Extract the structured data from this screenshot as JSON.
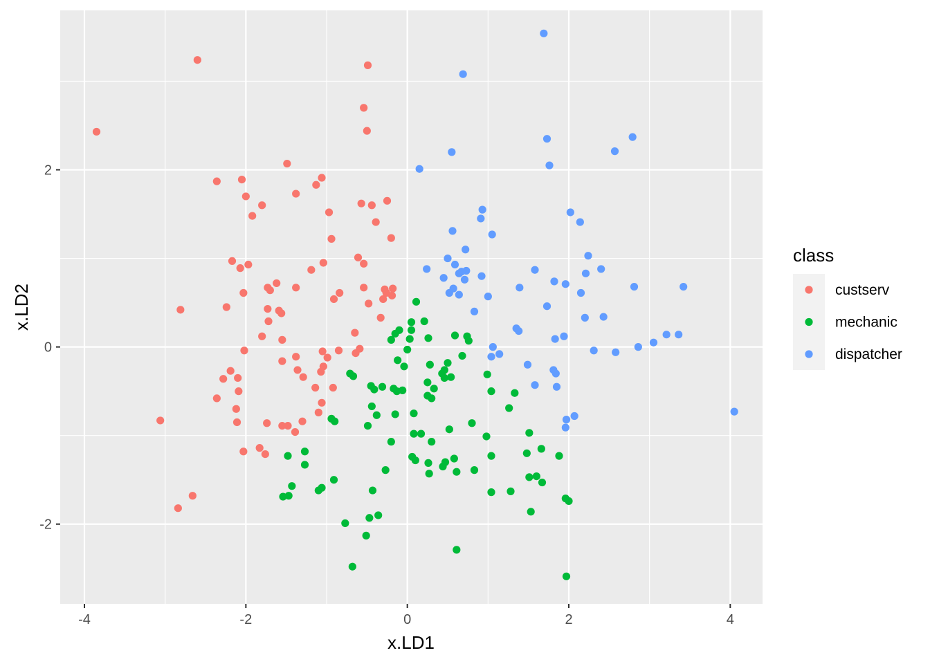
{
  "chart_data": {
    "type": "scatter",
    "title": "",
    "xlabel": "x.LD1",
    "ylabel": "x.LD2",
    "xlim": [
      -4.3,
      4.4
    ],
    "ylim": [
      -2.9,
      3.8
    ],
    "x_ticks": [
      -4,
      -2,
      0,
      2,
      4
    ],
    "y_ticks": [
      -2,
      0,
      2
    ],
    "x_tick_labels": [
      "-4",
      "-2",
      "0",
      "2",
      "4"
    ],
    "y_tick_labels": [
      "-2",
      "0",
      "2"
    ],
    "grid": true,
    "legend": {
      "title": "class",
      "position": "right"
    },
    "series": [
      {
        "name": "custserv",
        "color": "#F8766D",
        "points": [
          [
            -3.85,
            2.43
          ],
          [
            -2.6,
            3.24
          ],
          [
            -0.49,
            3.18
          ],
          [
            -0.54,
            2.7
          ],
          [
            -0.5,
            2.44
          ],
          [
            -1.49,
            2.07
          ],
          [
            -2.36,
            1.87
          ],
          [
            -2.05,
            1.89
          ],
          [
            -1.06,
            1.91
          ],
          [
            -1.13,
            1.83
          ],
          [
            -1.38,
            1.73
          ],
          [
            -2.0,
            1.7
          ],
          [
            -1.8,
            1.6
          ],
          [
            -0.57,
            1.62
          ],
          [
            -0.44,
            1.6
          ],
          [
            -0.25,
            1.65
          ],
          [
            -1.92,
            1.48
          ],
          [
            -0.97,
            1.52
          ],
          [
            -0.39,
            1.41
          ],
          [
            -0.2,
            1.23
          ],
          [
            -0.94,
            1.22
          ],
          [
            -2.17,
            0.97
          ],
          [
            -1.97,
            0.93
          ],
          [
            -2.07,
            0.89
          ],
          [
            -1.04,
            0.95
          ],
          [
            -1.19,
            0.87
          ],
          [
            -0.61,
            1.01
          ],
          [
            -0.54,
            0.94
          ],
          [
            -1.62,
            0.72
          ],
          [
            -1.73,
            0.67
          ],
          [
            -1.7,
            0.64
          ],
          [
            -1.38,
            0.67
          ],
          [
            -0.54,
            0.67
          ],
          [
            -0.28,
            0.65
          ],
          [
            -0.18,
            0.66
          ],
          [
            -0.26,
            0.61
          ],
          [
            -2.03,
            0.61
          ],
          [
            -0.84,
            0.61
          ],
          [
            -0.91,
            0.54
          ],
          [
            -0.3,
            0.54
          ],
          [
            -0.19,
            0.58
          ],
          [
            -2.81,
            0.42
          ],
          [
            -2.24,
            0.45
          ],
          [
            -1.73,
            0.43
          ],
          [
            -1.59,
            0.41
          ],
          [
            -1.56,
            0.38
          ],
          [
            -0.48,
            0.49
          ],
          [
            -0.33,
            0.33
          ],
          [
            -1.72,
            0.29
          ],
          [
            -1.8,
            0.12
          ],
          [
            -1.55,
            0.08
          ],
          [
            -0.65,
            0.16
          ],
          [
            -2.02,
            -0.04
          ],
          [
            -1.05,
            -0.05
          ],
          [
            -0.85,
            -0.04
          ],
          [
            -0.59,
            -0.02
          ],
          [
            -0.64,
            -0.07
          ],
          [
            -1.38,
            -0.11
          ],
          [
            -0.99,
            -0.12
          ],
          [
            -1.55,
            -0.16
          ],
          [
            -1.04,
            -0.22
          ],
          [
            -2.19,
            -0.27
          ],
          [
            -1.36,
            -0.26
          ],
          [
            -1.07,
            -0.28
          ],
          [
            -2.28,
            -0.36
          ],
          [
            -2.1,
            -0.35
          ],
          [
            -1.29,
            -0.34
          ],
          [
            -1.14,
            -0.46
          ],
          [
            -0.92,
            -0.46
          ],
          [
            -2.09,
            -0.5
          ],
          [
            -2.36,
            -0.58
          ],
          [
            -1.06,
            -0.63
          ],
          [
            -2.12,
            -0.7
          ],
          [
            -1.1,
            -0.74
          ],
          [
            -3.06,
            -0.83
          ],
          [
            -2.11,
            -0.85
          ],
          [
            -1.74,
            -0.86
          ],
          [
            -1.3,
            -0.84
          ],
          [
            -1.55,
            -0.89
          ],
          [
            -1.48,
            -0.89
          ],
          [
            -1.39,
            -0.96
          ],
          [
            -1.83,
            -1.14
          ],
          [
            -2.03,
            -1.18
          ],
          [
            -1.76,
            -1.21
          ],
          [
            -2.66,
            -1.68
          ],
          [
            -2.84,
            -1.82
          ]
        ]
      },
      {
        "name": "mechanic",
        "color": "#00BA38",
        "points": [
          [
            0.11,
            0.51
          ],
          [
            0.05,
            0.28
          ],
          [
            0.21,
            0.29
          ],
          [
            -0.1,
            0.19
          ],
          [
            0.05,
            0.19
          ],
          [
            -0.15,
            0.15
          ],
          [
            -0.2,
            0.08
          ],
          [
            0.03,
            0.09
          ],
          [
            0.26,
            0.1
          ],
          [
            0.59,
            0.13
          ],
          [
            0.74,
            0.12
          ],
          [
            0.76,
            0.07
          ],
          [
            0.0,
            -0.03
          ],
          [
            0.68,
            -0.1
          ],
          [
            -0.12,
            -0.15
          ],
          [
            0.28,
            -0.2
          ],
          [
            0.5,
            -0.18
          ],
          [
            -0.04,
            -0.22
          ],
          [
            -0.71,
            -0.3
          ],
          [
            -0.67,
            -0.33
          ],
          [
            0.43,
            -0.3
          ],
          [
            0.46,
            -0.26
          ],
          [
            0.46,
            -0.35
          ],
          [
            0.54,
            -0.34
          ],
          [
            0.99,
            -0.31
          ],
          [
            0.25,
            -0.4
          ],
          [
            -0.45,
            -0.44
          ],
          [
            -0.31,
            -0.45
          ],
          [
            -0.41,
            -0.48
          ],
          [
            -0.17,
            -0.47
          ],
          [
            -0.13,
            -0.5
          ],
          [
            -0.06,
            -0.49
          ],
          [
            0.33,
            -0.47
          ],
          [
            1.04,
            -0.5
          ],
          [
            1.33,
            -0.52
          ],
          [
            0.25,
            -0.55
          ],
          [
            0.3,
            -0.58
          ],
          [
            -0.44,
            -0.67
          ],
          [
            1.26,
            -0.69
          ],
          [
            -0.38,
            -0.77
          ],
          [
            -0.15,
            -0.76
          ],
          [
            0.08,
            -0.75
          ],
          [
            -0.94,
            -0.81
          ],
          [
            -0.9,
            -0.84
          ],
          [
            0.8,
            -0.86
          ],
          [
            -0.49,
            -0.89
          ],
          [
            0.52,
            -0.93
          ],
          [
            0.08,
            -0.98
          ],
          [
            0.17,
            -0.98
          ],
          [
            1.51,
            -0.97
          ],
          [
            0.98,
            -1.01
          ],
          [
            -0.2,
            -1.07
          ],
          [
            0.3,
            -1.07
          ],
          [
            1.66,
            -1.15
          ],
          [
            -1.27,
            -1.18
          ],
          [
            1.48,
            -1.2
          ],
          [
            -1.48,
            -1.23
          ],
          [
            0.06,
            -1.24
          ],
          [
            0.1,
            -1.28
          ],
          [
            0.58,
            -1.26
          ],
          [
            1.04,
            -1.23
          ],
          [
            1.88,
            -1.23
          ],
          [
            0.47,
            -1.3
          ],
          [
            0.26,
            -1.31
          ],
          [
            -1.27,
            -1.33
          ],
          [
            0.44,
            -1.35
          ],
          [
            -0.27,
            -1.39
          ],
          [
            0.61,
            -1.41
          ],
          [
            0.83,
            -1.39
          ],
          [
            0.27,
            -1.43
          ],
          [
            1.51,
            -1.47
          ],
          [
            1.6,
            -1.46
          ],
          [
            -0.91,
            -1.5
          ],
          [
            1.67,
            -1.53
          ],
          [
            -1.43,
            -1.57
          ],
          [
            -1.06,
            -1.59
          ],
          [
            -1.1,
            -1.62
          ],
          [
            -0.43,
            -1.62
          ],
          [
            1.04,
            -1.64
          ],
          [
            1.28,
            -1.63
          ],
          [
            -1.54,
            -1.69
          ],
          [
            -1.47,
            -1.68
          ],
          [
            1.96,
            -1.71
          ],
          [
            2.0,
            -1.74
          ],
          [
            1.53,
            -1.86
          ],
          [
            -0.36,
            -1.9
          ],
          [
            -0.47,
            -1.93
          ],
          [
            -0.77,
            -1.99
          ],
          [
            -0.51,
            -2.13
          ],
          [
            0.61,
            -2.29
          ],
          [
            -0.68,
            -2.48
          ],
          [
            1.97,
            -2.59
          ]
        ]
      },
      {
        "name": "dispatcher",
        "color": "#619CFF",
        "points": [
          [
            1.69,
            3.54
          ],
          [
            0.69,
            3.08
          ],
          [
            2.79,
            2.37
          ],
          [
            1.73,
            2.35
          ],
          [
            0.55,
            2.2
          ],
          [
            2.57,
            2.21
          ],
          [
            0.15,
            2.01
          ],
          [
            1.76,
            2.05
          ],
          [
            0.93,
            1.55
          ],
          [
            2.02,
            1.52
          ],
          [
            0.91,
            1.45
          ],
          [
            2.14,
            1.41
          ],
          [
            0.56,
            1.31
          ],
          [
            1.05,
            1.27
          ],
          [
            0.72,
            1.1
          ],
          [
            2.24,
            1.03
          ],
          [
            0.5,
            1.0
          ],
          [
            0.59,
            0.93
          ],
          [
            0.24,
            0.88
          ],
          [
            0.73,
            0.86
          ],
          [
            1.58,
            0.87
          ],
          [
            2.4,
            0.88
          ],
          [
            0.64,
            0.83
          ],
          [
            0.67,
            0.85
          ],
          [
            2.21,
            0.83
          ],
          [
            0.45,
            0.78
          ],
          [
            0.71,
            0.76
          ],
          [
            0.92,
            0.8
          ],
          [
            1.82,
            0.74
          ],
          [
            1.96,
            0.71
          ],
          [
            2.81,
            0.68
          ],
          [
            3.42,
            0.68
          ],
          [
            1.39,
            0.67
          ],
          [
            0.57,
            0.66
          ],
          [
            0.52,
            0.61
          ],
          [
            0.64,
            0.59
          ],
          [
            2.15,
            0.61
          ],
          [
            1.0,
            0.57
          ],
          [
            1.73,
            0.46
          ],
          [
            0.83,
            0.4
          ],
          [
            2.2,
            0.33
          ],
          [
            2.43,
            0.34
          ],
          [
            1.35,
            0.21
          ],
          [
            1.38,
            0.18
          ],
          [
            1.94,
            0.12
          ],
          [
            3.21,
            0.14
          ],
          [
            3.36,
            0.14
          ],
          [
            1.83,
            0.09
          ],
          [
            3.05,
            0.05
          ],
          [
            2.86,
            0.0
          ],
          [
            1.06,
            0.0
          ],
          [
            1.14,
            -0.08
          ],
          [
            1.04,
            -0.11
          ],
          [
            2.31,
            -0.04
          ],
          [
            2.58,
            -0.06
          ],
          [
            1.49,
            -0.2
          ],
          [
            1.81,
            -0.26
          ],
          [
            1.84,
            -0.3
          ],
          [
            1.58,
            -0.43
          ],
          [
            1.85,
            -0.45
          ],
          [
            4.05,
            -0.73
          ],
          [
            2.07,
            -0.78
          ],
          [
            1.97,
            -0.82
          ],
          [
            1.96,
            -0.91
          ]
        ]
      }
    ]
  }
}
